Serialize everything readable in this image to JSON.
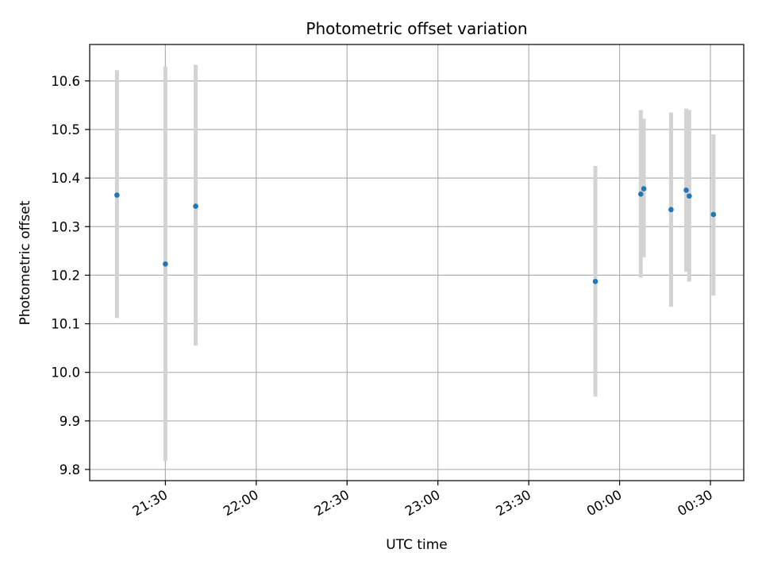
{
  "chart_data": {
    "type": "scatter",
    "title": "Photometric offset variation",
    "xlabel": "UTC time",
    "ylabel": "Photometric offset",
    "x_ticks": [
      "21:30",
      "22:00",
      "22:30",
      "23:00",
      "23:30",
      "00:00",
      "00:30"
    ],
    "y_ticks": [
      "9.8",
      "9.9",
      "10.0",
      "10.1",
      "10.2",
      "10.3",
      "10.4",
      "10.5",
      "10.6"
    ],
    "x_range": [
      "21:05",
      "00:41"
    ],
    "y_range": [
      9.777,
      10.675
    ],
    "grid": true,
    "colors": {
      "points": "#1f77b4",
      "error_bars": "#d3d3d3",
      "grid": "#b0b0b0",
      "frame": "#000000"
    },
    "points": [
      {
        "x": "21:14",
        "y": 10.365,
        "yerr_low": 10.112,
        "yerr_high": 10.622
      },
      {
        "x": "21:30",
        "y": 10.223,
        "yerr_low": 9.817,
        "yerr_high": 10.63
      },
      {
        "x": "21:40",
        "y": 10.342,
        "yerr_low": 10.055,
        "yerr_high": 10.633
      },
      {
        "x": "23:52",
        "y": 10.187,
        "yerr_low": 9.95,
        "yerr_high": 10.425
      },
      {
        "x": "00:07",
        "y": 10.367,
        "yerr_low": 10.195,
        "yerr_high": 10.54
      },
      {
        "x": "00:08",
        "y": 10.378,
        "yerr_low": 10.237,
        "yerr_high": 10.522
      },
      {
        "x": "00:17",
        "y": 10.335,
        "yerr_low": 10.135,
        "yerr_high": 10.535
      },
      {
        "x": "00:22",
        "y": 10.375,
        "yerr_low": 10.207,
        "yerr_high": 10.543
      },
      {
        "x": "00:23",
        "y": 10.363,
        "yerr_low": 10.187,
        "yerr_high": 10.54
      },
      {
        "x": "00:31",
        "y": 10.325,
        "yerr_low": 10.158,
        "yerr_high": 10.49
      }
    ]
  }
}
